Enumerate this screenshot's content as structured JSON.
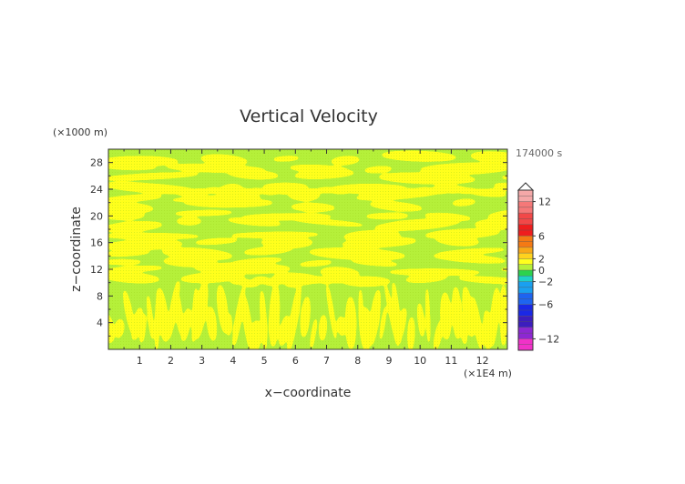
{
  "chart_data": {
    "type": "heatmap",
    "title": "Vertical Velocity",
    "xlabel": "x−coordinate",
    "ylabel": "z−coordinate",
    "x_unit": "(×1E4 m)",
    "y_unit": "(×1000 m)",
    "time_label": "174000 s",
    "x_range": [
      0,
      12.8
    ],
    "y_range": [
      0,
      30
    ],
    "x_ticks": [
      "1",
      "2",
      "3",
      "4",
      "5",
      "6",
      "7",
      "8",
      "9",
      "10",
      "11",
      "12"
    ],
    "y_ticks": [
      "4",
      "8",
      "12",
      "16",
      "20",
      "24",
      "28"
    ],
    "field_colors": {
      "near_zero": "#b5f03a",
      "small_positive": "#ffff1e"
    },
    "colorbar": {
      "labels": [
        "12",
        "6",
        "2",
        "0",
        "−2",
        "−6",
        "−12"
      ],
      "label_values": [
        12,
        6,
        2,
        0,
        -2,
        -6,
        -12
      ],
      "range": [
        -14,
        14
      ],
      "bands": [
        {
          "from": 12,
          "to": 14,
          "color": "#f4a8a8"
        },
        {
          "from": 10,
          "to": 12,
          "color": "#f57878"
        },
        {
          "from": 8,
          "to": 10,
          "color": "#f24848"
        },
        {
          "from": 6,
          "to": 8,
          "color": "#ee1e1e"
        },
        {
          "from": 4,
          "to": 6,
          "color": "#f47a14"
        },
        {
          "from": 3,
          "to": 4,
          "color": "#f8a818"
        },
        {
          "from": 2,
          "to": 3,
          "color": "#ffd21e"
        },
        {
          "from": 1,
          "to": 2,
          "color": "#ffff1e"
        },
        {
          "from": 0,
          "to": 1,
          "color": "#b5f03a"
        },
        {
          "from": -1,
          "to": 0,
          "color": "#2cd24e"
        },
        {
          "from": -2,
          "to": -1,
          "color": "#1ed2c8"
        },
        {
          "from": -4,
          "to": -2,
          "color": "#1aa0f0"
        },
        {
          "from": -6,
          "to": -4,
          "color": "#1e64f0"
        },
        {
          "from": -8,
          "to": -6,
          "color": "#1a28e6"
        },
        {
          "from": -10,
          "to": -8,
          "color": "#3c1ebe"
        },
        {
          "from": -12,
          "to": -10,
          "color": "#8c28d2"
        },
        {
          "from": -14,
          "to": -12,
          "color": "#f032c8"
        }
      ]
    }
  }
}
